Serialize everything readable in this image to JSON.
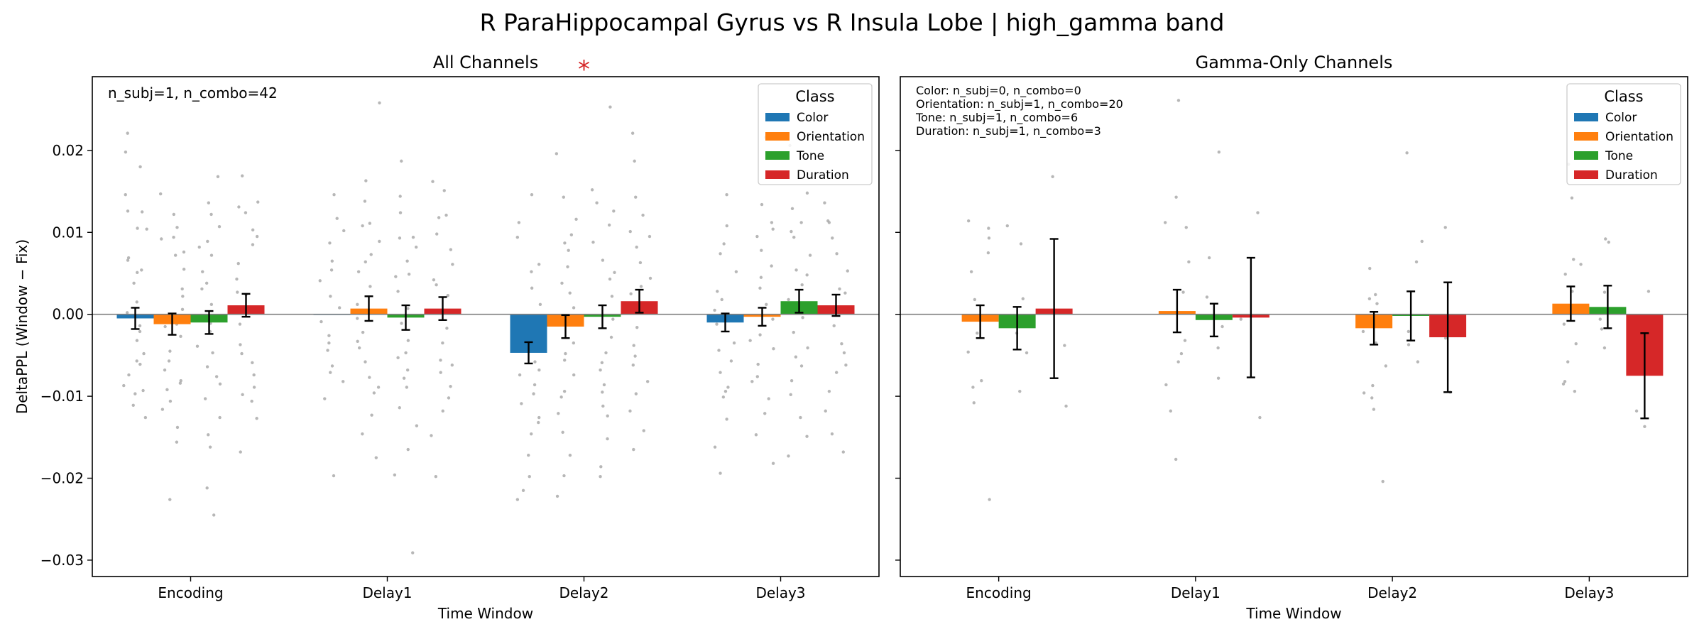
{
  "figure": {
    "suptitle": "R ParaHippocampal Gyrus vs R Insula Lobe  |  high_gamma band"
  },
  "chart_data": [
    {
      "type": "bar",
      "title": "All Channels",
      "xlabel": "Time Window",
      "ylabel": "DeltaPPL (Window − Fix)",
      "categories": [
        "Encoding",
        "Delay1",
        "Delay2",
        "Delay3"
      ],
      "ylim": [
        -0.032,
        0.029
      ],
      "yticks": [
        -0.03,
        -0.02,
        -0.01,
        0.0,
        0.01,
        0.02
      ],
      "ytick_labels": [
        "−0.03",
        "−0.02",
        "−0.01",
        "0.00",
        "0.01",
        "0.02"
      ],
      "show_ytick_labels": true,
      "annotation": [
        "n_subj=1, n_combo=42"
      ],
      "significance": [
        {
          "category": "Delay2",
          "text": "*"
        }
      ],
      "legend": {
        "title": "Class",
        "placement": "upper right"
      },
      "series": [
        {
          "name": "Color",
          "color": "#1f77b4",
          "values": [
            -0.0005,
            0.0,
            -0.0047,
            -0.001
          ],
          "errors": [
            0.0013,
            0.0,
            0.0013,
            0.0011
          ]
        },
        {
          "name": "Orientation",
          "color": "#ff7f0e",
          "values": [
            -0.0012,
            0.0007,
            -0.0015,
            -0.0003
          ],
          "errors": [
            0.0013,
            0.0015,
            0.0014,
            0.0011
          ]
        },
        {
          "name": "Tone",
          "color": "#2ca02c",
          "values": [
            -0.001,
            -0.0004,
            -0.0003,
            0.0016
          ],
          "errors": [
            0.0014,
            0.0015,
            0.0014,
            0.0014
          ]
        },
        {
          "name": "Duration",
          "color": "#d62728",
          "values": [
            0.0011,
            0.0007,
            0.0016,
            0.0011
          ],
          "errors": [
            0.0014,
            0.0014,
            0.0014,
            0.0013
          ]
        }
      ],
      "points": {
        "color": "#aaaaaa",
        "values": [
          [
            [
              0.0221,
              0.0198,
              0.018,
              0.0125,
              0.0104,
              0.0069,
              0.0066,
              0.0038,
              0.0015,
              0.0002,
              -0.0014,
              -0.0021,
              -0.0048,
              -0.0057,
              -0.0074,
              -0.0087,
              -0.0093,
              -0.0111,
              -0.0126,
              0.0146,
              0.0105,
              0.0051,
              -0.0061,
              -0.0097,
              0.0126,
              0.0054,
              -0.0032
            ],
            [
              0.0147,
              0.0122,
              0.0106,
              0.0092,
              0.0076,
              0.0055,
              0.0031,
              0.0006,
              -0.0012,
              -0.0027,
              -0.0045,
              -0.0068,
              -0.0081,
              -0.0092,
              -0.0106,
              -0.0138,
              -0.0156,
              -0.0226,
              0.0072,
              0.0022,
              -0.0057,
              -0.0084,
              0.0094,
              -0.0015,
              -0.0116
            ],
            [
              0.0168,
              0.0122,
              0.0107,
              0.0089,
              0.0072,
              0.0052,
              0.0038,
              0.0012,
              -0.0006,
              -0.0021,
              -0.0039,
              -0.0064,
              -0.0076,
              -0.0103,
              -0.0126,
              -0.0147,
              -0.0162,
              -0.0212,
              -0.0245,
              0.0082,
              0.0031,
              -0.0047,
              -0.0085,
              0.0136,
              -0.0011
            ],
            [
              0.0169,
              0.0137,
              0.0124,
              0.0103,
              0.0085,
              0.0062,
              0.0043,
              0.0024,
              0.0007,
              -0.0012,
              -0.0037,
              -0.0059,
              -0.0074,
              -0.0089,
              -0.0106,
              -0.0127,
              -0.0168,
              0.0095,
              0.0027,
              -0.0048,
              -0.0098,
              0.0131
            ]
          ],
          [
            [
              0.0146,
              0.0102,
              0.0087,
              0.0065,
              0.0041,
              0.0022,
              0.0008,
              -0.0009,
              -0.0026,
              -0.0044,
              -0.0063,
              -0.0082,
              -0.0103,
              -0.0197,
              0.0117,
              0.0054,
              -0.0035,
              -0.0071
            ],
            [
              0.0258,
              0.0163,
              0.0138,
              0.0111,
              0.0089,
              0.0073,
              0.0052,
              0.0034,
              0.0012,
              -0.0005,
              -0.0022,
              -0.0041,
              -0.0058,
              -0.0077,
              -0.0096,
              -0.0123,
              -0.0146,
              -0.0175,
              0.0108,
              0.0064,
              -0.0033,
              -0.0089
            ],
            [
              0.0187,
              0.0144,
              0.0124,
              0.0093,
              0.0082,
              0.0065,
              0.0049,
              0.0028,
              0.0007,
              -0.0011,
              -0.0032,
              -0.0053,
              -0.0068,
              -0.0089,
              -0.0114,
              -0.0136,
              -0.0165,
              -0.0196,
              -0.0291,
              0.0094,
              0.0046,
              -0.0047,
              -0.0078
            ],
            [
              0.0162,
              0.0151,
              0.0118,
              0.0098,
              0.0079,
              0.0061,
              0.0042,
              0.0023,
              0.0004,
              -0.0017,
              -0.0035,
              -0.0056,
              -0.0071,
              -0.0088,
              -0.0102,
              -0.0118,
              -0.0148,
              -0.0198,
              0.0121,
              0.0036,
              -0.0062
            ]
          ],
          [
            [
              0.0146,
              0.0094,
              0.0061,
              0.0032,
              0.0012,
              -0.0023,
              -0.0041,
              -0.0058,
              -0.0074,
              -0.0086,
              -0.0097,
              -0.0109,
              -0.0126,
              -0.0146,
              -0.0172,
              -0.0198,
              -0.0215,
              -0.0226,
              0.0112,
              0.0052,
              -0.0068,
              -0.0132
            ],
            [
              0.0196,
              0.0143,
              0.0116,
              0.0097,
              0.0078,
              0.0058,
              0.0026,
              0.0008,
              -0.0012,
              -0.0035,
              -0.0056,
              -0.0074,
              -0.0094,
              -0.0121,
              -0.0144,
              -0.0172,
              -0.0197,
              -0.0222,
              0.0087,
              0.0038,
              -0.0048,
              -0.0101
            ],
            [
              0.0253,
              0.0152,
              0.0126,
              0.0109,
              0.0088,
              0.0066,
              0.0051,
              0.0022,
              -0.0006,
              -0.0028,
              -0.0047,
              -0.0068,
              -0.0086,
              -0.0095,
              -0.0124,
              -0.0152,
              -0.0186,
              -0.0198,
              0.0136,
              0.0043,
              -0.0059,
              -0.0112
            ],
            [
              0.0221,
              0.0187,
              0.0143,
              0.0121,
              0.0101,
              0.0082,
              0.0063,
              0.0044,
              0.0025,
              0.0004,
              -0.0016,
              -0.0038,
              -0.0062,
              -0.0082,
              -0.0118,
              -0.0142,
              -0.0165,
              0.0095,
              0.0034,
              -0.0051,
              -0.0097
            ]
          ],
          [
            [
              0.0146,
              0.0108,
              0.0074,
              0.0052,
              0.0028,
              0.0005,
              -0.0012,
              -0.0035,
              -0.0057,
              -0.0071,
              -0.0089,
              -0.0101,
              -0.0128,
              -0.0162,
              -0.0194,
              0.0086,
              0.0018,
              -0.0044,
              -0.0094
            ],
            [
              0.0216,
              0.0134,
              0.0112,
              0.0095,
              0.0078,
              0.0059,
              0.0032,
              0.0012,
              -0.0006,
              -0.0025,
              -0.0042,
              -0.0061,
              -0.0082,
              -0.0103,
              -0.0121,
              -0.0147,
              -0.0182,
              0.0104,
              0.0045,
              -0.0032,
              -0.0076
            ],
            [
              0.0206,
              0.0148,
              0.0129,
              0.0112,
              0.0094,
              0.0072,
              0.0054,
              0.0036,
              0.0018,
              -0.0004,
              -0.0022,
              -0.0041,
              -0.0063,
              -0.0081,
              -0.0098,
              -0.0126,
              -0.0149,
              -0.0173,
              0.0101,
              0.0048,
              -0.0052
            ],
            [
              0.0213,
              0.0171,
              0.0136,
              0.0114,
              0.0093,
              0.0074,
              0.0053,
              0.0031,
              0.0008,
              -0.0014,
              -0.0036,
              -0.0047,
              -0.0071,
              -0.0094,
              -0.0118,
              -0.0146,
              -0.0168,
              0.0112,
              0.0026,
              -0.0062
            ]
          ]
        ]
      }
    },
    {
      "type": "bar",
      "title": "Gamma-Only Channels",
      "xlabel": "Time Window",
      "ylabel": "",
      "categories": [
        "Encoding",
        "Delay1",
        "Delay2",
        "Delay3"
      ],
      "ylim": [
        -0.032,
        0.029
      ],
      "yticks": [
        -0.03,
        -0.02,
        -0.01,
        0.0,
        0.01,
        0.02
      ],
      "ytick_labels": [
        "",
        "",
        "",
        "",
        "",
        ""
      ],
      "show_ytick_labels": false,
      "annotation": [
        "Color: n_subj=0, n_combo=0",
        "Orientation: n_subj=1, n_combo=20",
        "Tone: n_subj=1, n_combo=6",
        "Duration: n_subj=1, n_combo=3"
      ],
      "significance": [],
      "legend": {
        "title": "Class",
        "placement": "upper right"
      },
      "series": [
        {
          "name": "Color",
          "color": "#1f77b4",
          "values": [
            null,
            null,
            null,
            null
          ],
          "errors": [
            0,
            0,
            0,
            0
          ]
        },
        {
          "name": "Orientation",
          "color": "#ff7f0e",
          "values": [
            -0.0009,
            0.0004,
            -0.0017,
            0.0013
          ],
          "errors": [
            0.002,
            0.0026,
            0.002,
            0.0021
          ]
        },
        {
          "name": "Tone",
          "color": "#2ca02c",
          "values": [
            -0.0017,
            -0.0007,
            -0.0002,
            0.0009
          ],
          "errors": [
            0.0026,
            0.002,
            0.003,
            0.0026
          ]
        },
        {
          "name": "Duration",
          "color": "#d62728",
          "values": [
            0.0007,
            -0.0004,
            -0.0028,
            -0.0075
          ],
          "errors": [
            0.0085,
            0.0073,
            0.0067,
            0.0052
          ]
        }
      ],
      "points": {
        "color": "#aaaaaa",
        "values": [
          [
            [],
            [
              0.0114,
              0.0093,
              0.0075,
              0.0052,
              0.0018,
              -0.0023,
              -0.0046,
              -0.0081,
              -0.0108,
              -0.0226,
              0.0105,
              -0.0089
            ],
            [
              0.0108,
              0.0086,
              0.0019,
              -0.0047,
              -0.0094,
              -0.0023
            ],
            [
              0.0168,
              -0.0038,
              -0.0112
            ]
          ],
          [
            [],
            [
              0.0261,
              0.0143,
              0.0112,
              0.0064,
              0.0027,
              -0.0032,
              -0.0048,
              -0.0086,
              -0.0118,
              -0.0177,
              0.0106,
              -0.0058
            ],
            [
              0.0198,
              0.0069,
              0.0021,
              -0.0041,
              -0.0078,
              -0.0015
            ],
            [
              0.0124,
              -0.0006,
              -0.0126
            ]
          ],
          [
            [],
            [
              0.0056,
              0.0024,
              0.0013,
              -0.0021,
              -0.0035,
              -0.0063,
              -0.0087,
              -0.0102,
              -0.0116,
              -0.0204,
              0.0019,
              -0.0096
            ],
            [
              0.0197,
              0.0089,
              0.0064,
              -0.0037,
              -0.0058,
              -0.0021
            ],
            [
              0.0106,
              -0.0029,
              -0.0095
            ]
          ],
          [
            [],
            [
              0.0183,
              0.0142,
              0.0067,
              0.0049,
              0.0028,
              -0.0012,
              -0.0036,
              -0.0058,
              -0.0082,
              -0.0094,
              0.0061,
              -0.0085
            ],
            [
              0.0092,
              0.0088,
              0.0027,
              -0.0018,
              -0.0041,
              -0.0006
            ],
            [
              0.0028,
              -0.0118,
              -0.0137
            ]
          ]
        ]
      }
    }
  ]
}
